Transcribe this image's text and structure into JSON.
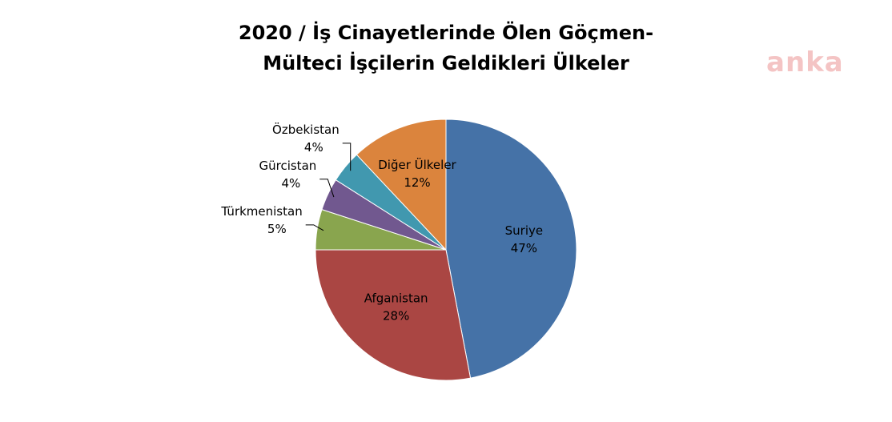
{
  "chart_data": {
    "type": "pie",
    "title": "2020 / İş Cinayetlerinde Ölen Göçmen-Mülteci İşçilerin Geldikleri Ülkeler",
    "watermark": "anka",
    "categories": [
      "Suriye",
      "Afganistan",
      "Türkmenistan",
      "Gürcistan",
      "Özbekistan",
      "Diğer Ülkeler"
    ],
    "values": [
      47,
      28,
      5,
      4,
      4,
      12
    ],
    "value_labels": [
      "47%",
      "28%",
      "5%",
      "4%",
      "4%",
      "12%"
    ],
    "colors": [
      "#4572a7",
      "#aa4643",
      "#89a54e",
      "#71588f",
      "#4198af",
      "#db843d"
    ]
  }
}
